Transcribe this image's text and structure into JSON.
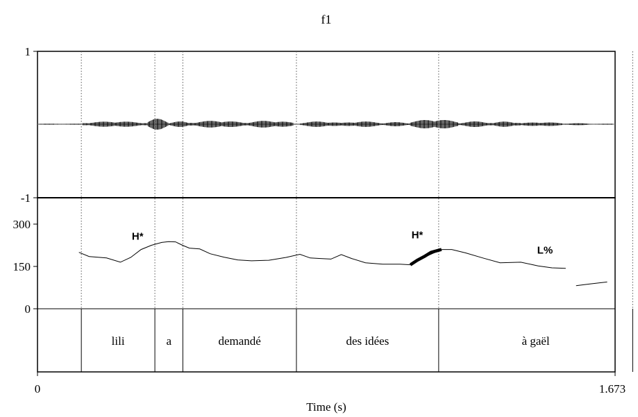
{
  "chart_data": {
    "type": "line",
    "title": "f1",
    "xlabel": "Time (s)",
    "x_range": [
      0,
      1.673
    ],
    "x_ticks": [
      "0",
      "1.673"
    ],
    "waveform": {
      "ylim": [
        -1,
        1
      ],
      "y_ticks": [
        "1",
        "-1"
      ]
    },
    "pitch": {
      "ylim": [
        0,
        300
      ],
      "y_ticks": [
        "300",
        "150",
        "0"
      ],
      "series": [
        {
          "x": [
            0.12,
            0.15,
            0.2,
            0.24,
            0.27,
            0.3,
            0.33,
            0.36,
            0.38,
            0.4,
            0.42,
            0.44,
            0.47,
            0.5,
            0.54,
            0.58,
            0.62,
            0.67,
            0.72,
            0.76,
            0.79,
            0.82,
            0.85,
            0.88,
            0.91,
            0.95,
            1.0,
            1.05,
            1.08,
            1.13,
            1.17,
            1.2,
            1.24,
            1.29,
            1.34,
            1.4,
            1.45,
            1.49,
            1.53
          ],
          "values": [
            200,
            185,
            180,
            165,
            182,
            210,
            225,
            235,
            238,
            237,
            225,
            215,
            212,
            195,
            183,
            173,
            170,
            172,
            182,
            193,
            180,
            178,
            176,
            192,
            178,
            163,
            158,
            158,
            156,
            188,
            210,
            210,
            198,
            180,
            163,
            165,
            152,
            145,
            143
          ]
        },
        {
          "x": [
            1.56,
            1.6,
            1.65
          ],
          "values": [
            82,
            88,
            95
          ]
        }
      ],
      "highlight": {
        "x": [
          1.08,
          1.1,
          1.12,
          1.14,
          1.17
        ],
        "values": [
          156,
          172,
          185,
          200,
          210
        ]
      },
      "tone_labels": [
        {
          "text": "H*",
          "x": 0.29,
          "y": 245
        },
        {
          "text": "H*",
          "x": 1.1,
          "y": 250
        },
        {
          "text": "L%",
          "x": 1.47,
          "y": 195
        }
      ]
    },
    "boundaries": [
      0.127,
      0.34,
      0.421,
      0.75,
      1.162,
      1.724
    ],
    "words": [
      {
        "text": "lili",
        "start": 0.127,
        "end": 0.34
      },
      {
        "text": "a",
        "start": 0.34,
        "end": 0.421
      },
      {
        "text": "demandé",
        "start": 0.421,
        "end": 0.75
      },
      {
        "text": "des idées",
        "start": 0.75,
        "end": 1.162
      },
      {
        "text": "à gaël",
        "start": 1.162,
        "end": 1.724
      }
    ]
  }
}
